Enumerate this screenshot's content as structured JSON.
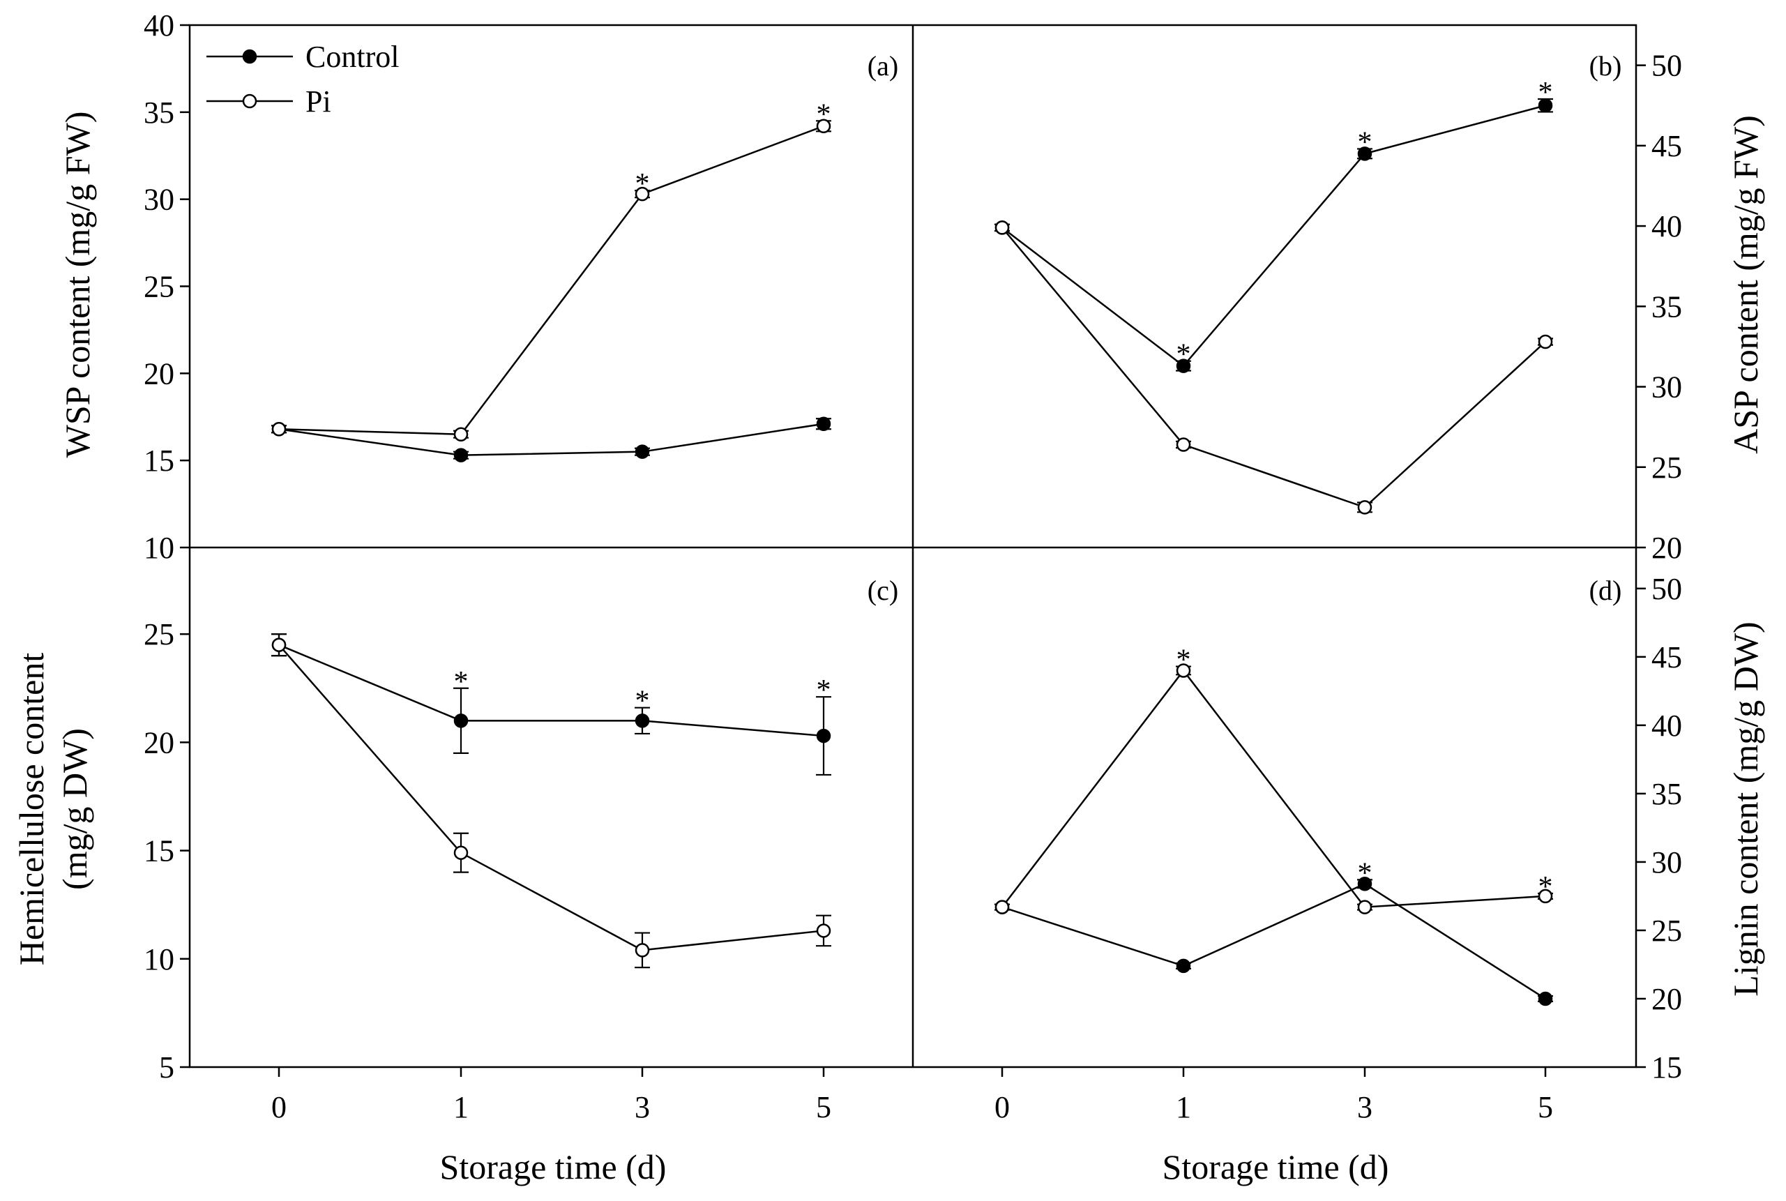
{
  "legend": [
    {
      "name": "Control",
      "marker": "filled"
    },
    {
      "name": "Pi",
      "marker": "open"
    }
  ],
  "x_axis_title": "Storage time (d)",
  "chart_data": [
    {
      "type": "line",
      "panel_label": "(a)",
      "ylabel": "WSP content (mg/g FW)",
      "y_axis_side": "left",
      "categories": [
        "0",
        "1",
        "3",
        "5"
      ],
      "ylim": [
        10,
        40
      ],
      "yticks": [
        10,
        15,
        20,
        25,
        30,
        35,
        40
      ],
      "series": [
        {
          "name": "Control",
          "values": [
            16.8,
            15.3,
            15.5,
            17.1
          ],
          "errors": [
            0.2,
            0.2,
            0.2,
            0.3
          ]
        },
        {
          "name": "Pi",
          "values": [
            16.8,
            16.5,
            30.3,
            34.2
          ],
          "errors": [
            0.2,
            0.2,
            0.2,
            0.3
          ]
        }
      ],
      "significance": [
        {
          "category": "3",
          "series": "Pi",
          "text": "*"
        },
        {
          "category": "5",
          "series": "Pi",
          "text": "*"
        }
      ]
    },
    {
      "type": "line",
      "panel_label": "(b)",
      "ylabel": "ASP content (mg/g FW)",
      "y_axis_side": "right",
      "categories": [
        "0",
        "1",
        "3",
        "5"
      ],
      "ylim": [
        20,
        52.5
      ],
      "yticks": [
        20,
        25,
        30,
        35,
        40,
        45,
        50
      ],
      "series": [
        {
          "name": "Control",
          "values": [
            39.9,
            31.3,
            44.5,
            47.5
          ],
          "errors": [
            0.2,
            0.3,
            0.3,
            0.4
          ]
        },
        {
          "name": "Pi",
          "values": [
            39.9,
            26.4,
            22.5,
            32.8
          ],
          "errors": [
            0.2,
            0.2,
            0.3,
            0.2
          ]
        }
      ],
      "significance": [
        {
          "category": "1",
          "series": "Control",
          "text": "*"
        },
        {
          "category": "3",
          "series": "Control",
          "text": "*"
        },
        {
          "category": "5",
          "series": "Control",
          "text": "*"
        }
      ]
    },
    {
      "type": "line",
      "panel_label": "(c)",
      "ylabel": "Hemicellulose content (mg/g DW)",
      "y_axis_side": "left",
      "categories": [
        "0",
        "1",
        "3",
        "5"
      ],
      "ylim": [
        5,
        29
      ],
      "yticks": [
        5,
        10,
        15,
        20,
        25
      ],
      "series": [
        {
          "name": "Control",
          "values": [
            24.5,
            21.0,
            21.0,
            20.3
          ],
          "errors": [
            0.5,
            1.5,
            0.6,
            1.8
          ]
        },
        {
          "name": "Pi",
          "values": [
            24.5,
            14.9,
            10.4,
            11.3
          ],
          "errors": [
            0.5,
            0.9,
            0.8,
            0.7
          ]
        }
      ],
      "significance": [
        {
          "category": "1",
          "series": "Control",
          "text": "*"
        },
        {
          "category": "3",
          "series": "Control",
          "text": "*"
        },
        {
          "category": "5",
          "series": "Control",
          "text": "*"
        }
      ]
    },
    {
      "type": "line",
      "panel_label": "(d)",
      "ylabel": "Lignin content (mg/g DW)",
      "y_axis_side": "right",
      "categories": [
        "0",
        "1",
        "3",
        "5"
      ],
      "ylim": [
        15,
        53
      ],
      "yticks": [
        15,
        20,
        25,
        30,
        35,
        40,
        45,
        50
      ],
      "series": [
        {
          "name": "Control",
          "values": [
            26.7,
            22.4,
            28.4,
            20.0
          ],
          "errors": [
            0.2,
            0.2,
            0.3,
            0.2
          ]
        },
        {
          "name": "Pi",
          "values": [
            26.7,
            44.0,
            26.7,
            27.5
          ],
          "errors": [
            0.2,
            0.3,
            0.2,
            0.2
          ]
        }
      ],
      "significance": [
        {
          "category": "1",
          "series": "Pi",
          "text": "*"
        },
        {
          "category": "3",
          "series": "Control",
          "text": "*"
        },
        {
          "category": "5",
          "series": "Pi",
          "text": "*"
        }
      ]
    }
  ]
}
